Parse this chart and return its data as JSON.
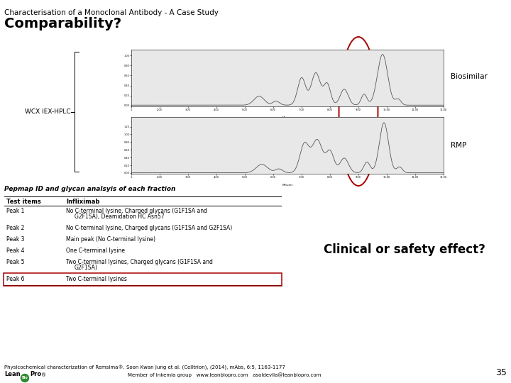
{
  "title_line1": "Characterisation of a Monoclonal Antibody - A Case Study",
  "title_line2": "Comparability?",
  "wcx_label": "WCX IEX-HPLC",
  "biosimilar_label": "Biosimilar",
  "rmp_label": "RMP",
  "pepmap_title": "Pepmap ID and glycan analsyis of each fraction",
  "table_header_col1": "Test items",
  "table_header_col2": "Infliximab",
  "table_rows": [
    [
      "Peak 1",
      "No C-terminal lysine, Charged glycans (G1F1SA and",
      "G2F1SA), Deamidation HC Asn57"
    ],
    [
      "Peak 2",
      "No C-terminal lysine, Charged glycans (G1F1SA and G2F1SA)",
      ""
    ],
    [
      "Peak 3",
      "Main peak (No C-terminal lysine)",
      ""
    ],
    [
      "Peak 4",
      "One C-terminal lysine",
      ""
    ],
    [
      "Peak 5",
      "Two C-terminal lysines, Charged glycans (G1F1SA and",
      "G2F1SA)"
    ],
    [
      "Peak 6",
      "Two C-terminal lysines",
      ""
    ]
  ],
  "highlight_row": 5,
  "clinical_text": "Clinical or safety effect?",
  "footer_text": "Physicochemical characterization of Remsima®. Soon Kwan Jung et al. (Celltrion), (2014), mAbs, 6:5, 1163-1177",
  "footer_lean": "Lean",
  "footer_bio": "Bio",
  "footer_pro": "Pro",
  "footer_reg": "®",
  "footer_member": "Member of inkemia group   www.leanbiopro.com   asoldevila@leanbiopro.com",
  "page_number": "35",
  "background_color": "#ffffff",
  "oval_color": "#aa0000",
  "highlight_color": "#aa0000",
  "table_line_color": "#000000",
  "logo_green": "#2e8b2e",
  "chart_bg": "#e8e8e8",
  "chart_line": "#555555",
  "biosim_peaks_x": [
    5.5,
    6.1,
    7.0,
    7.5,
    7.9,
    8.5,
    9.2,
    9.85,
    10.4
  ],
  "biosim_peaks_amp": [
    0.18,
    0.08,
    0.55,
    0.65,
    0.42,
    0.32,
    0.22,
    1.02,
    0.12
  ],
  "biosim_peaks_sig": [
    0.18,
    0.12,
    0.14,
    0.16,
    0.12,
    0.14,
    0.1,
    0.18,
    0.1
  ],
  "rmp_peaks_x": [
    5.6,
    6.2,
    7.1,
    7.55,
    8.0,
    8.5,
    9.3,
    9.9,
    10.45
  ],
  "rmp_peaks_amp": [
    0.22,
    0.1,
    0.75,
    0.85,
    0.55,
    0.38,
    0.28,
    1.3,
    0.15
  ],
  "rmp_peaks_sig": [
    0.2,
    0.13,
    0.16,
    0.18,
    0.14,
    0.15,
    0.11,
    0.16,
    0.1
  ]
}
